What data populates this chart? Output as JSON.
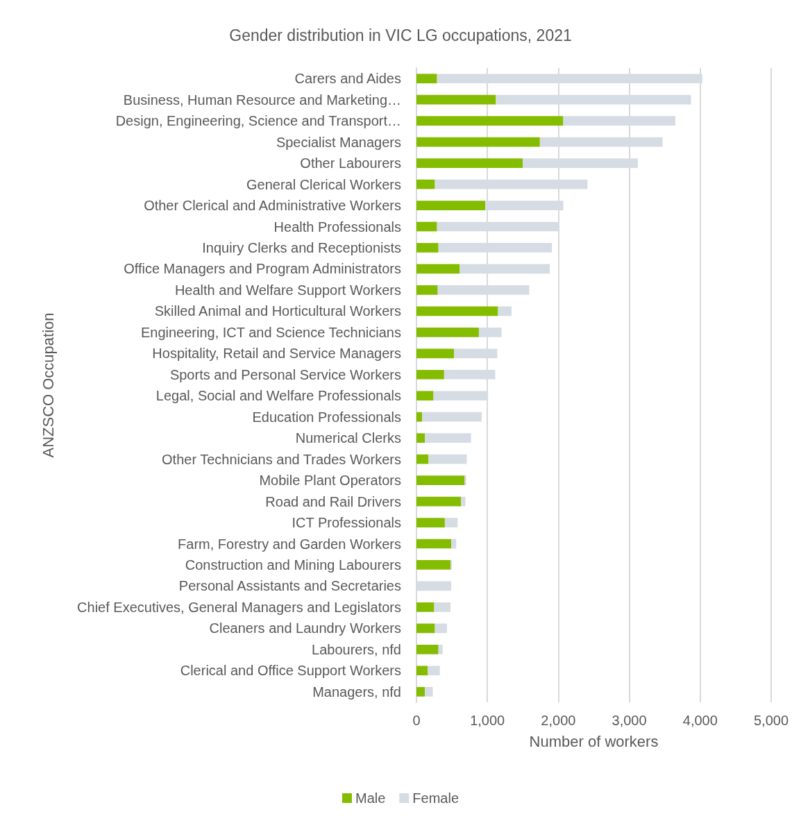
{
  "chart_data": {
    "type": "bar",
    "orientation": "horizontal",
    "stacked": true,
    "title": "Gender distribution in VIC LG occupations, 2021",
    "xlabel": "Number of workers",
    "ylabel": "ANZSCO Occupation",
    "categories": [
      "Carers and Aides",
      "Business, Human Resource and Marketing…",
      "Design, Engineering, Science and Transport…",
      "Specialist Managers",
      "Other Labourers",
      "General Clerical Workers",
      "Other Clerical and Administrative Workers",
      "Health Professionals",
      "Inquiry Clerks and Receptionists",
      "Office Managers and Program Administrators",
      "Health and Welfare Support Workers",
      "Skilled Animal and Horticultural Workers",
      "Engineering, ICT and Science Technicians",
      "Hospitality, Retail and Service Managers",
      "Sports and Personal Service Workers",
      "Legal, Social and Welfare Professionals",
      "Education Professionals",
      "Numerical Clerks",
      "Other Technicians and Trades Workers",
      "Mobile Plant Operators",
      "Road and Rail Drivers",
      "ICT Professionals",
      "Farm, Forestry and Garden Workers",
      "Construction and Mining Labourers",
      "Personal Assistants and Secretaries",
      "Chief Executives, General Managers and Legislators",
      "Cleaners and Laundry Workers",
      "Labourers, nfd",
      "Clerical and Office Support Workers",
      "Managers, nfd"
    ],
    "series": [
      {
        "name": "Male",
        "color": "#84bd00",
        "values": [
          290,
          1120,
          2070,
          1740,
          1500,
          260,
          970,
          290,
          310,
          610,
          300,
          1150,
          880,
          530,
          390,
          240,
          80,
          120,
          170,
          680,
          630,
          400,
          490,
          480,
          0,
          250,
          260,
          310,
          160,
          120
        ]
      },
      {
        "name": "Female",
        "color": "#d6dce4",
        "values": [
          3740,
          2750,
          1580,
          1730,
          1620,
          2150,
          1100,
          1710,
          1600,
          1270,
          1290,
          190,
          320,
          610,
          720,
          770,
          840,
          650,
          540,
          20,
          60,
          180,
          70,
          20,
          490,
          230,
          170,
          60,
          170,
          110
        ]
      }
    ],
    "xlim": [
      0,
      5000
    ],
    "xticks": [
      {
        "value": 0,
        "label": "0"
      },
      {
        "value": 1000,
        "label": "1,000"
      },
      {
        "value": 2000,
        "label": "2,000"
      },
      {
        "value": 3000,
        "label": "3,000"
      },
      {
        "value": 4000,
        "label": "4,000"
      },
      {
        "value": 5000,
        "label": "5,000"
      }
    ],
    "grid": "x",
    "legend": "bottom"
  }
}
